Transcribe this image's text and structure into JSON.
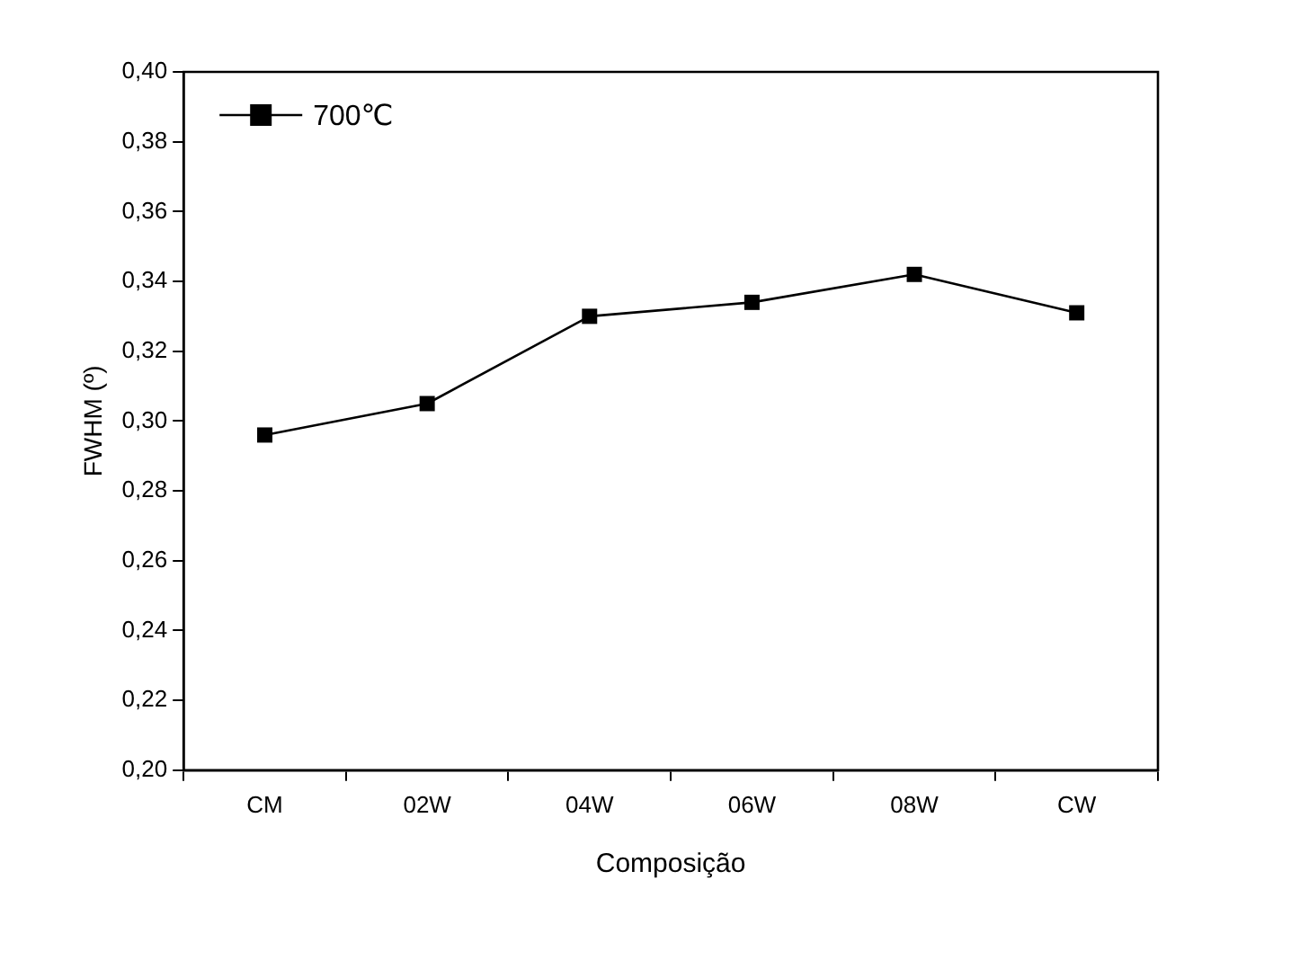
{
  "chart_data": {
    "type": "line",
    "xlabel": "Composição",
    "ylabel": "FWHM (º)",
    "categories": [
      "CM",
      "02W",
      "04W",
      "06W",
      "08W",
      "CW"
    ],
    "series": [
      {
        "name": "700℃",
        "color": "#000000",
        "values": [
          0.296,
          0.305,
          0.33,
          0.334,
          0.342,
          0.331
        ]
      }
    ],
    "ylim": [
      0.2,
      0.4
    ],
    "yticks": [
      {
        "value": 0.2,
        "label": "0,20"
      },
      {
        "value": 0.22,
        "label": "0,22"
      },
      {
        "value": 0.24,
        "label": "0,24"
      },
      {
        "value": 0.26,
        "label": "0,26"
      },
      {
        "value": 0.28,
        "label": "0,28"
      },
      {
        "value": 0.3,
        "label": "0,30"
      },
      {
        "value": 0.32,
        "label": "0,32"
      },
      {
        "value": 0.34,
        "label": "0,34"
      },
      {
        "value": 0.36,
        "label": "0,36"
      },
      {
        "value": 0.38,
        "label": "0,38"
      },
      {
        "value": 0.4,
        "label": "0,40"
      }
    ],
    "grid": false,
    "legend": "top left",
    "marker": "square",
    "line_style": "solid"
  }
}
